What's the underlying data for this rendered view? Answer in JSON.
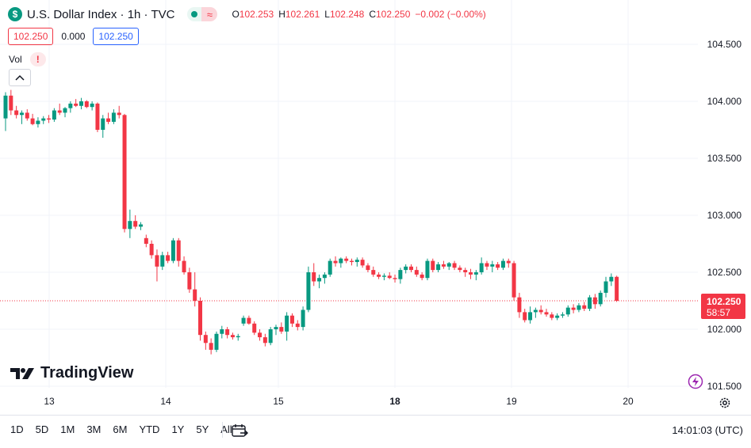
{
  "header": {
    "symbol_icon": "dollar-sign",
    "title": "U.S. Dollar Index · 1h · TVC",
    "ohlc": [
      {
        "label": "O",
        "value": "102.253"
      },
      {
        "label": "H",
        "value": "102.261"
      },
      {
        "label": "L",
        "value": "102.248"
      },
      {
        "label": "C",
        "value": "102.250"
      }
    ],
    "change": "−0.002 (−0.00%)",
    "market_status_icon": "market-open-dot",
    "delay_icon": "delayed-data-wave"
  },
  "quote": {
    "sell": "102.250",
    "spread": "0.000",
    "buy": "102.250"
  },
  "volume": {
    "label": "Vol",
    "warning": "!"
  },
  "price_axis": {
    "labels": [
      "104.500",
      "104.000",
      "103.500",
      "103.000",
      "102.500",
      "102.000",
      "101.500"
    ]
  },
  "last_price": {
    "value": "102.250",
    "countdown": "58:57"
  },
  "time_axis": {
    "labels": [
      "13",
      "14",
      "15",
      "18",
      "19",
      "20"
    ]
  },
  "logo": "TradingView",
  "bottom_bar": {
    "ranges": [
      "1D",
      "5D",
      "1M",
      "3M",
      "6M",
      "YTD",
      "1Y",
      "5Y",
      "All"
    ],
    "clock": "14:01:03 (UTC)"
  },
  "colors": {
    "up": "#089981",
    "down": "#f23645",
    "grid": "#f0f3fa",
    "accent": "#2962ff"
  },
  "chart_data": {
    "type": "candlestick",
    "title": "U.S. Dollar Index · 1h · TVC",
    "interval": "1h",
    "ylim": [
      101.5,
      104.6
    ],
    "grid": true,
    "x_labels": [
      "13",
      "14",
      "15",
      "18",
      "19",
      "20"
    ],
    "last_price": 102.25,
    "candles": [
      [
        103.85,
        104.08,
        103.74,
        104.05
      ],
      [
        104.05,
        104.1,
        103.88,
        103.92
      ],
      [
        103.92,
        103.96,
        103.85,
        103.88
      ],
      [
        103.88,
        103.92,
        103.8,
        103.9
      ],
      [
        103.9,
        103.93,
        103.83,
        103.85
      ],
      [
        103.85,
        103.89,
        103.79,
        103.8
      ],
      [
        103.8,
        103.86,
        103.77,
        103.83
      ],
      [
        103.83,
        103.87,
        103.8,
        103.85
      ],
      [
        103.85,
        103.88,
        103.81,
        103.84
      ],
      [
        103.84,
        103.94,
        103.82,
        103.92
      ],
      [
        103.92,
        103.98,
        103.88,
        103.9
      ],
      [
        103.9,
        103.95,
        103.86,
        103.94
      ],
      [
        103.94,
        104.0,
        103.9,
        103.98
      ],
      [
        103.98,
        104.02,
        103.95,
        103.96
      ],
      [
        103.96,
        104.03,
        103.93,
        104.0
      ],
      [
        104.0,
        104.01,
        103.94,
        103.95
      ],
      [
        103.95,
        104.0,
        103.92,
        103.98
      ],
      [
        103.98,
        103.99,
        103.73,
        103.75
      ],
      [
        103.75,
        103.88,
        103.68,
        103.85
      ],
      [
        103.85,
        103.9,
        103.8,
        103.82
      ],
      [
        103.82,
        103.93,
        103.8,
        103.9
      ],
      [
        103.9,
        103.96,
        103.85,
        103.88
      ],
      [
        103.88,
        103.89,
        102.85,
        102.88
      ],
      [
        102.88,
        103.05,
        102.8,
        102.95
      ],
      [
        102.95,
        103.0,
        102.88,
        102.9
      ],
      [
        102.9,
        102.94,
        102.87,
        102.92
      ],
      [
        102.8,
        102.83,
        102.72,
        102.75
      ],
      [
        102.75,
        102.78,
        102.62,
        102.65
      ],
      [
        102.65,
        102.7,
        102.42,
        102.55
      ],
      [
        102.55,
        102.68,
        102.52,
        102.65
      ],
      [
        102.65,
        102.68,
        102.58,
        102.6
      ],
      [
        102.6,
        102.8,
        102.58,
        102.78
      ],
      [
        102.78,
        102.8,
        102.55,
        102.6
      ],
      [
        102.6,
        102.64,
        102.48,
        102.5
      ],
      [
        102.5,
        102.54,
        102.32,
        102.35
      ],
      [
        102.35,
        102.5,
        102.2,
        102.25
      ],
      [
        102.25,
        102.28,
        101.9,
        101.95
      ],
      [
        101.95,
        101.98,
        101.82,
        101.88
      ],
      [
        101.88,
        101.92,
        101.78,
        101.82
      ],
      [
        101.82,
        101.98,
        101.8,
        101.96
      ],
      [
        101.96,
        102.03,
        101.92,
        102.0
      ],
      [
        102.0,
        102.02,
        101.92,
        101.95
      ],
      [
        101.95,
        101.97,
        101.91,
        101.93
      ],
      [
        101.93,
        101.96,
        101.9,
        101.94
      ],
      [
        102.05,
        102.12,
        102.03,
        102.1
      ],
      [
        102.1,
        102.12,
        102.04,
        102.05
      ],
      [
        102.05,
        102.07,
        101.95,
        101.97
      ],
      [
        101.97,
        102.0,
        101.9,
        101.93
      ],
      [
        101.93,
        101.96,
        101.85,
        101.88
      ],
      [
        101.88,
        102.02,
        101.86,
        102.0
      ],
      [
        102.0,
        102.04,
        101.95,
        102.02
      ],
      [
        102.02,
        102.06,
        101.96,
        101.98
      ],
      [
        101.98,
        102.15,
        101.9,
        102.12
      ],
      [
        102.12,
        102.14,
        102.02,
        102.05
      ],
      [
        102.05,
        102.08,
        101.99,
        102.02
      ],
      [
        102.02,
        102.2,
        101.99,
        102.17
      ],
      [
        102.17,
        102.55,
        102.15,
        102.5
      ],
      [
        102.5,
        102.58,
        102.38,
        102.42
      ],
      [
        102.42,
        102.48,
        102.36,
        102.45
      ],
      [
        102.45,
        102.5,
        102.4,
        102.48
      ],
      [
        102.48,
        102.62,
        102.46,
        102.6
      ],
      [
        102.6,
        102.64,
        102.55,
        102.58
      ],
      [
        102.58,
        102.63,
        102.54,
        102.62
      ],
      [
        102.62,
        102.64,
        102.58,
        102.6
      ],
      [
        102.6,
        102.62,
        102.56,
        102.59
      ],
      [
        102.59,
        102.63,
        102.55,
        102.61
      ],
      [
        102.61,
        102.63,
        102.54,
        102.56
      ],
      [
        102.56,
        102.58,
        102.5,
        102.52
      ],
      [
        102.52,
        102.55,
        102.46,
        102.48
      ],
      [
        102.48,
        102.5,
        102.44,
        102.46
      ],
      [
        102.46,
        102.49,
        102.43,
        102.47
      ],
      [
        102.47,
        102.5,
        102.44,
        102.45
      ],
      [
        102.45,
        102.48,
        102.41,
        102.44
      ],
      [
        102.44,
        102.54,
        102.4,
        102.52
      ],
      [
        102.52,
        102.57,
        102.49,
        102.55
      ],
      [
        102.55,
        102.57,
        102.5,
        102.52
      ],
      [
        102.52,
        102.55,
        102.46,
        102.48
      ],
      [
        102.48,
        102.5,
        102.43,
        102.45
      ],
      [
        102.45,
        102.62,
        102.43,
        102.6
      ],
      [
        102.6,
        102.62,
        102.5,
        102.52
      ],
      [
        102.52,
        102.59,
        102.5,
        102.57
      ],
      [
        102.57,
        102.6,
        102.53,
        102.55
      ],
      [
        102.55,
        102.59,
        102.52,
        102.58
      ],
      [
        102.58,
        102.6,
        102.52,
        102.54
      ],
      [
        102.54,
        102.56,
        102.5,
        102.52
      ],
      [
        102.52,
        102.54,
        102.46,
        102.5
      ],
      [
        102.5,
        102.53,
        102.44,
        102.48
      ],
      [
        102.48,
        102.52,
        102.43,
        102.5
      ],
      [
        102.5,
        102.63,
        102.48,
        102.58
      ],
      [
        102.58,
        102.6,
        102.52,
        102.55
      ],
      [
        102.55,
        102.6,
        102.5,
        102.57
      ],
      [
        102.57,
        102.59,
        102.52,
        102.54
      ],
      [
        102.54,
        102.62,
        102.52,
        102.6
      ],
      [
        102.6,
        102.62,
        102.54,
        102.58
      ],
      [
        102.58,
        102.6,
        102.25,
        102.28
      ],
      [
        102.28,
        102.32,
        102.1,
        102.15
      ],
      [
        102.15,
        102.18,
        102.06,
        102.08
      ],
      [
        102.08,
        102.2,
        102.05,
        102.15
      ],
      [
        102.15,
        102.19,
        102.1,
        102.17
      ],
      [
        102.17,
        102.21,
        102.13,
        102.15
      ],
      [
        102.15,
        102.18,
        102.11,
        102.13
      ],
      [
        102.13,
        102.15,
        102.08,
        102.1
      ],
      [
        102.1,
        102.14,
        102.08,
        102.12
      ],
      [
        102.12,
        102.15,
        102.1,
        102.13
      ],
      [
        102.13,
        102.21,
        102.11,
        102.19
      ],
      [
        102.19,
        102.22,
        102.14,
        102.17
      ],
      [
        102.17,
        102.23,
        102.15,
        102.21
      ],
      [
        102.21,
        102.24,
        102.16,
        102.18
      ],
      [
        102.18,
        102.3,
        102.16,
        102.28
      ],
      [
        102.28,
        102.31,
        102.18,
        102.22
      ],
      [
        102.22,
        102.34,
        102.2,
        102.32
      ],
      [
        102.32,
        102.46,
        102.28,
        102.42
      ],
      [
        102.42,
        102.49,
        102.38,
        102.46
      ],
      [
        102.46,
        102.47,
        102.24,
        102.25
      ]
    ]
  }
}
